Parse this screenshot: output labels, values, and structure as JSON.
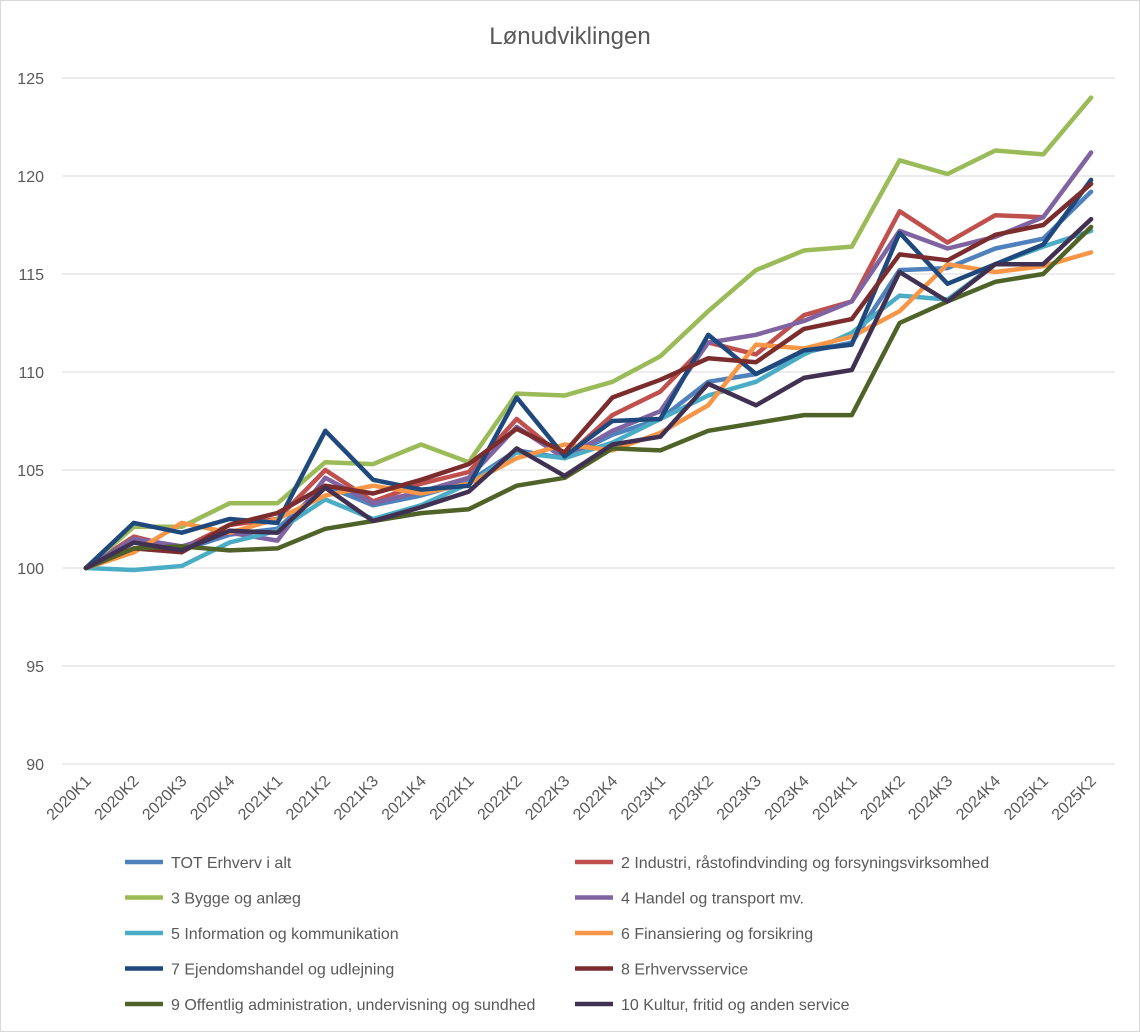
{
  "chart_data": {
    "type": "line",
    "title": "Lønudviklingen",
    "xlabel": "",
    "ylabel": "",
    "ylim": [
      90,
      125
    ],
    "yticks": [
      90,
      95,
      100,
      105,
      110,
      115,
      120,
      125
    ],
    "grid": "horizontal",
    "legend_position": "bottom",
    "categories": [
      "2020K1",
      "2020K2",
      "2020K3",
      "2020K4",
      "2021K1",
      "2021K2",
      "2021K3",
      "2021K4",
      "2022K1",
      "2022K2",
      "2022K3",
      "2022K4",
      "2023K1",
      "2023K2",
      "2023K3",
      "2023K4",
      "2024K1",
      "2024K2",
      "2024K3",
      "2024K4",
      "2025K1",
      "2025K2"
    ],
    "series": [
      {
        "name": "TOT Erhverv i alt",
        "color": "#4f81bd",
        "values": [
          100,
          101.3,
          100.9,
          101.7,
          102.0,
          104.2,
          103.2,
          103.7,
          104.4,
          106.0,
          105.6,
          106.8,
          107.6,
          109.5,
          109.9,
          111.0,
          111.5,
          115.2,
          115.3,
          116.3,
          116.8,
          119.2
        ]
      },
      {
        "name": "2 Industri, råstofindvinding og forsyningsvirksomhed",
        "color": "#c0504d",
        "values": [
          100,
          101.6,
          101.0,
          102.2,
          102.5,
          105.0,
          103.4,
          104.3,
          104.9,
          107.6,
          105.6,
          107.8,
          109.0,
          111.5,
          110.9,
          112.9,
          113.6,
          118.2,
          116.6,
          118.0,
          117.9,
          null
        ]
      },
      {
        "name": "3 Bygge og anlæg",
        "color": "#9bbb59",
        "values": [
          100,
          102.1,
          102.1,
          103.3,
          103.3,
          105.4,
          105.3,
          106.3,
          105.4,
          108.9,
          108.8,
          109.5,
          110.8,
          113.1,
          115.2,
          116.2,
          116.4,
          120.8,
          120.1,
          121.3,
          121.1,
          124.0
        ]
      },
      {
        "name": "4 Handel og transport mv.",
        "color": "#8064a2",
        "values": [
          100,
          101.5,
          101.1,
          101.8,
          101.4,
          104.6,
          103.3,
          103.9,
          104.6,
          107.2,
          105.6,
          107.0,
          108.0,
          111.5,
          111.9,
          112.6,
          113.6,
          117.2,
          116.3,
          116.9,
          117.9,
          121.2
        ]
      },
      {
        "name": "5 Information og kommunikation",
        "color": "#4bacc6",
        "values": [
          100,
          99.9,
          100.1,
          101.3,
          101.9,
          103.5,
          102.5,
          103.2,
          104.3,
          105.9,
          105.6,
          106.4,
          107.6,
          108.8,
          109.5,
          110.9,
          112.0,
          113.9,
          113.7,
          115.5,
          116.4,
          117.2
        ]
      },
      {
        "name": "6 Finansiering og forsikring",
        "color": "#f79646",
        "values": [
          100,
          100.8,
          102.3,
          101.8,
          102.5,
          103.7,
          104.2,
          103.8,
          104.3,
          105.6,
          106.3,
          106.0,
          106.9,
          108.3,
          111.4,
          111.2,
          111.8,
          113.1,
          115.5,
          115.1,
          115.4,
          116.1
        ]
      },
      {
        "name": "7 Ejendomshandel og udlejning",
        "color": "#1f497d",
        "values": [
          100,
          102.3,
          101.8,
          102.5,
          102.3,
          107.0,
          104.5,
          104.0,
          104.2,
          108.7,
          105.7,
          107.5,
          107.6,
          111.9,
          109.9,
          111.1,
          111.4,
          117.1,
          114.5,
          115.5,
          116.5,
          119.8
        ]
      },
      {
        "name": "8 Erhvervsservice",
        "color": "#7b2c2c",
        "values": [
          100,
          101.0,
          100.8,
          102.2,
          102.8,
          104.2,
          103.8,
          104.5,
          105.3,
          107.1,
          105.9,
          108.7,
          109.6,
          110.7,
          110.5,
          112.2,
          112.7,
          116.0,
          115.7,
          117.0,
          117.5,
          119.6
        ]
      },
      {
        "name": "9 Offentlig administration, undervisning og sundhed",
        "color": "#4f6228",
        "values": [
          100,
          101.0,
          101.1,
          100.9,
          101.0,
          102.0,
          102.4,
          102.8,
          103.0,
          104.2,
          104.6,
          106.1,
          106.0,
          107.0,
          107.4,
          107.8,
          107.8,
          112.5,
          113.6,
          114.6,
          115.0,
          117.4
        ]
      },
      {
        "name": "10 Kultur, fritid og anden service",
        "color": "#403152",
        "values": [
          100,
          101.3,
          100.9,
          101.9,
          101.8,
          104.1,
          102.4,
          103.1,
          103.9,
          106.1,
          104.7,
          106.3,
          106.7,
          109.4,
          108.3,
          109.7,
          110.1,
          115.1,
          113.6,
          115.5,
          115.5,
          117.8
        ]
      }
    ]
  }
}
